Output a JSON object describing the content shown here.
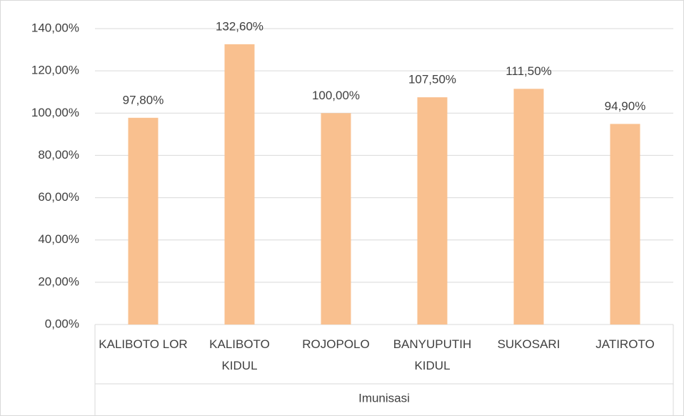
{
  "chart_data": {
    "type": "bar",
    "categories": [
      "KALIBOTO LOR",
      "KALIBOTO KIDUL",
      "ROJOPOLO",
      "BANYUPUTIH KIDUL",
      "SUKOSARI",
      "JATIROTO"
    ],
    "values": [
      97.8,
      132.6,
      100,
      107.5,
      111.5,
      94.9
    ],
    "value_labels": [
      "97,80%",
      "132,60%",
      "100,00%",
      "107,50%",
      "111,50%",
      "94,90%"
    ],
    "color": "#f9c08f",
    "xlabel": "Imunisasi",
    "ylim": [
      0,
      140
    ],
    "yticks": [
      {
        "value": 0,
        "label": "0,00%"
      },
      {
        "value": 20,
        "label": "20,00%"
      },
      {
        "value": 40,
        "label": "40,00%"
      },
      {
        "value": 60,
        "label": "60,00%"
      },
      {
        "value": 80,
        "label": "80,00%"
      },
      {
        "value": 100,
        "label": "100,00%"
      },
      {
        "value": 120,
        "label": "120,00%"
      },
      {
        "value": 140,
        "label": "140,00%"
      }
    ],
    "grid": true
  }
}
